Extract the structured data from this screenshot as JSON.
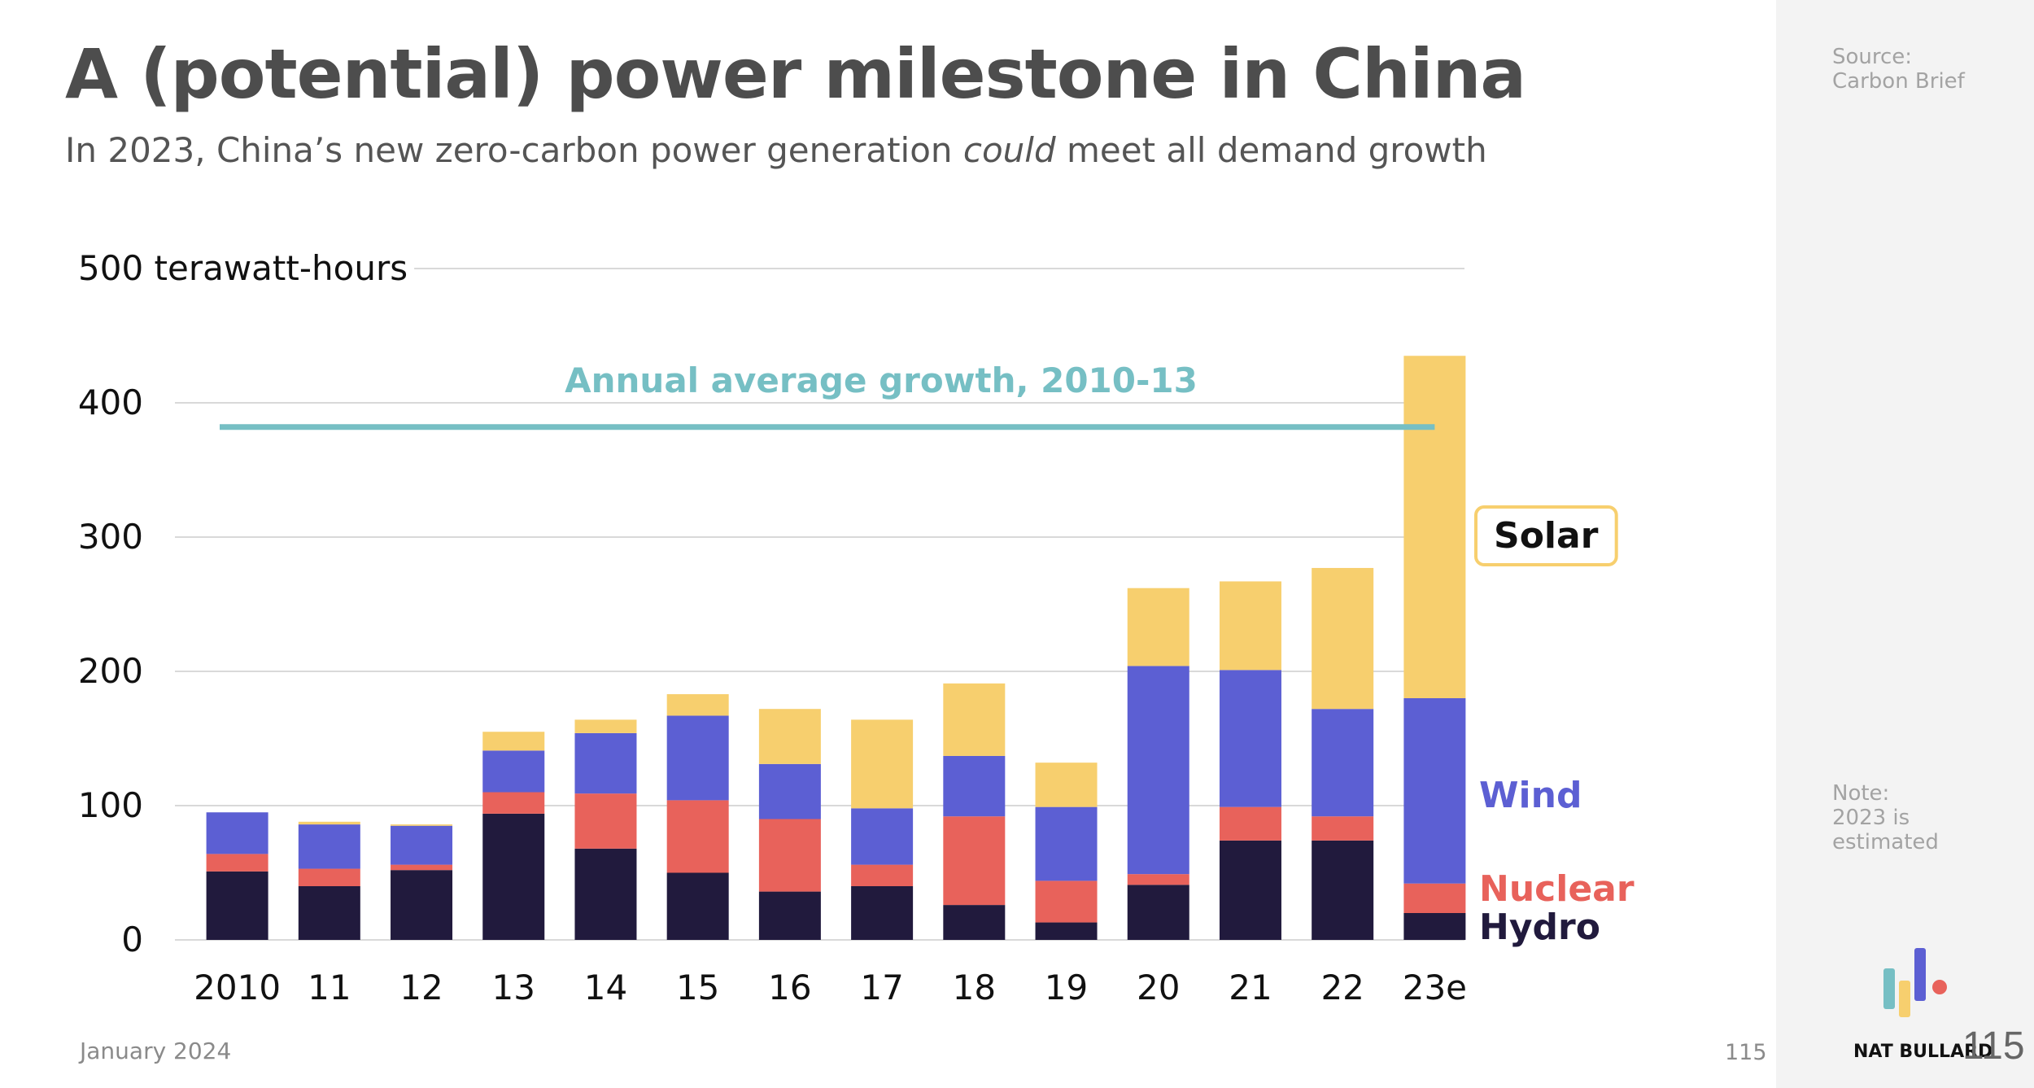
{
  "title": "A (potential) power milestone in China",
  "subtitle": {
    "before": "In 2023, China’s new zero-carbon power generation ",
    "emphasis": "could",
    "after": " meet all demand growth"
  },
  "source": {
    "label": "Source:",
    "value": "Carbon Brief"
  },
  "note": {
    "label": "Note:",
    "lines": [
      "2023 is",
      "estimated"
    ]
  },
  "footer": {
    "date": "January 2024",
    "page": "115",
    "page_big": "115",
    "brand": "NAT BULLARD"
  },
  "colors": {
    "Hydro": "#211a3d",
    "Nuclear": "#e8625b",
    "Wind": "#5c5fd3",
    "Solar": "#f7cf6e",
    "growth_line": "#76bfc4",
    "grid": "#d9d9d9"
  },
  "chart_data": {
    "type": "bar",
    "stacked": true,
    "unit_label": "terawatt-hours",
    "categories": [
      "2010",
      "11",
      "12",
      "13",
      "14",
      "15",
      "16",
      "17",
      "18",
      "19",
      "20",
      "21",
      "22",
      "23e"
    ],
    "series": [
      {
        "name": "Hydro",
        "values": [
          51,
          40,
          52,
          94,
          68,
          50,
          36,
          40,
          26,
          13,
          41,
          74,
          74,
          20
        ]
      },
      {
        "name": "Nuclear",
        "values": [
          13,
          13,
          4,
          16,
          41,
          54,
          54,
          16,
          66,
          31,
          8,
          25,
          18,
          22
        ]
      },
      {
        "name": "Wind",
        "values": [
          31,
          33,
          29,
          31,
          45,
          63,
          41,
          42,
          45,
          55,
          155,
          102,
          80,
          138
        ]
      },
      {
        "name": "Solar",
        "values": [
          0,
          2,
          1,
          14,
          10,
          16,
          41,
          66,
          54,
          33,
          58,
          66,
          105,
          255
        ]
      }
    ],
    "ylim": [
      0,
      500
    ],
    "yticks": [
      0,
      100,
      200,
      300,
      400,
      500
    ],
    "ytick_labels": [
      "0",
      "100",
      "200",
      "300",
      "400",
      "500"
    ],
    "grid": true,
    "reference_line": {
      "label": "Annual average growth, 2010-13",
      "value": 382
    },
    "legend": "right, labels beside the last bar"
  }
}
